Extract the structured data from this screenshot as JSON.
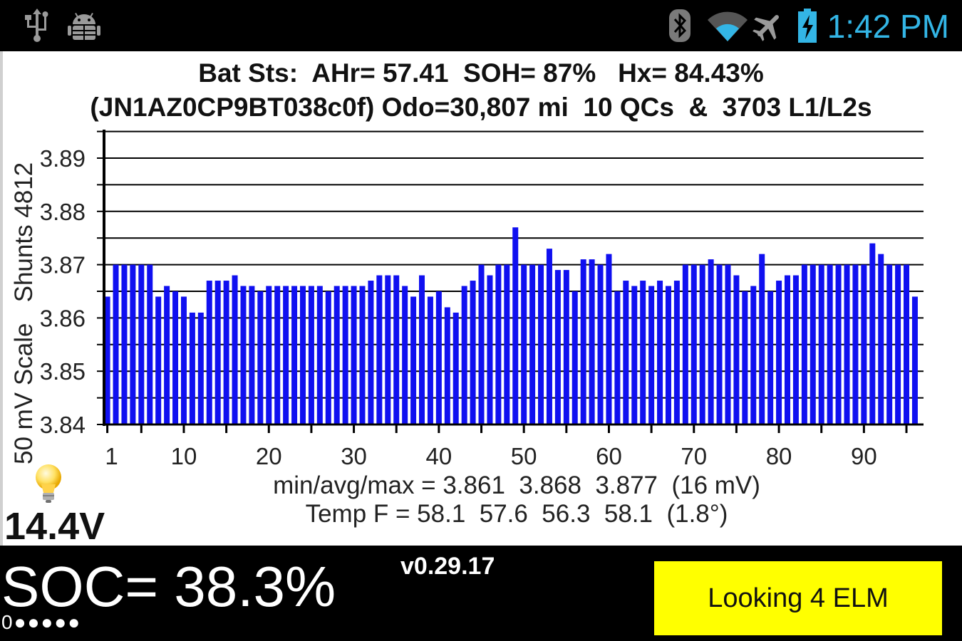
{
  "status_bar": {
    "time": "1:42 PM",
    "left_icons": [
      "usb-icon",
      "android-debug-icon"
    ],
    "right_icons": [
      "bluetooth-icon",
      "wifi-icon",
      "airplane-icon",
      "battery-charging-icon"
    ],
    "accent_color": "#33b5e5"
  },
  "header": {
    "line1": "Bat Sts:  AHr= 57.41  SOH= 87%   Hx= 84.43%",
    "line2": "(JN1AZ0CP9BT038c0f) Odo=30,807 mi  10 QCs  &  3703 L1/L2s"
  },
  "chart_data": {
    "type": "bar",
    "ylabel": "50 mV Scale   Shunts 4812",
    "ylim": [
      3.84,
      3.895
    ],
    "yticks": [
      "3.84",
      "3.85",
      "3.86",
      "3.87",
      "3.88",
      "3.89"
    ],
    "xticks": [
      "1",
      "10",
      "20",
      "30",
      "40",
      "50",
      "60",
      "70",
      "80",
      "90"
    ],
    "bar_color": "#1010f0",
    "grid": true,
    "x": [
      1,
      2,
      3,
      4,
      5,
      6,
      7,
      8,
      9,
      10,
      11,
      12,
      13,
      14,
      15,
      16,
      17,
      18,
      19,
      20,
      21,
      22,
      23,
      24,
      25,
      26,
      27,
      28,
      29,
      30,
      31,
      32,
      33,
      34,
      35,
      36,
      37,
      38,
      39,
      40,
      41,
      42,
      43,
      44,
      45,
      46,
      47,
      48,
      49,
      50,
      51,
      52,
      53,
      54,
      55,
      56,
      57,
      58,
      59,
      60,
      61,
      62,
      63,
      64,
      65,
      66,
      67,
      68,
      69,
      70,
      71,
      72,
      73,
      74,
      75,
      76,
      77,
      78,
      79,
      80,
      81,
      82,
      83,
      84,
      85,
      86,
      87,
      88,
      89,
      90,
      91,
      92,
      93,
      94,
      95,
      96
    ],
    "values": [
      3.864,
      3.87,
      3.87,
      3.87,
      3.87,
      3.87,
      3.864,
      3.866,
      3.865,
      3.864,
      3.861,
      3.861,
      3.867,
      3.867,
      3.867,
      3.868,
      3.866,
      3.866,
      3.865,
      3.866,
      3.866,
      3.866,
      3.866,
      3.866,
      3.866,
      3.866,
      3.865,
      3.866,
      3.866,
      3.866,
      3.866,
      3.867,
      3.868,
      3.868,
      3.868,
      3.866,
      3.864,
      3.868,
      3.864,
      3.865,
      3.862,
      3.861,
      3.866,
      3.867,
      3.87,
      3.868,
      3.87,
      3.87,
      3.877,
      3.87,
      3.87,
      3.87,
      3.873,
      3.869,
      3.869,
      3.865,
      3.871,
      3.871,
      3.87,
      3.872,
      3.865,
      3.867,
      3.866,
      3.867,
      3.866,
      3.867,
      3.866,
      3.867,
      3.87,
      3.87,
      3.87,
      3.871,
      3.87,
      3.87,
      3.868,
      3.865,
      3.866,
      3.872,
      3.865,
      3.867,
      3.868,
      3.868,
      3.87,
      3.87,
      3.87,
      3.87,
      3.87,
      3.87,
      3.87,
      3.87,
      3.874,
      3.872,
      3.87,
      3.87,
      3.87,
      3.864
    ]
  },
  "stats": {
    "voltage_line": "min/avg/max = 3.861  3.868  3.877  (16 mV)",
    "temp_line": "Temp F = 58.1  57.6  56.3  58.1  (1.8°)"
  },
  "aux_voltage": "14.4V",
  "soc": "SOC= 38.3%",
  "version": "v0.29.17",
  "indicator_dots": "0●●●●●",
  "elm_button": {
    "label": "Looking 4 ELM",
    "color": "#ffff00"
  }
}
